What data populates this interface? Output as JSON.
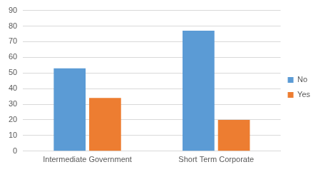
{
  "chart_data": {
    "type": "bar",
    "categories": [
      "Intermediate Government",
      "Short Term Corporate"
    ],
    "series": [
      {
        "name": "No",
        "color": "#5b9bd5",
        "values": [
          53,
          77
        ]
      },
      {
        "name": "Yes",
        "color": "#ed7d31",
        "values": [
          34,
          20
        ]
      }
    ],
    "ylim": [
      0,
      90
    ],
    "yticks": [
      0,
      10,
      20,
      30,
      40,
      50,
      60,
      70,
      80,
      90
    ],
    "grid": true,
    "legend": "right"
  }
}
